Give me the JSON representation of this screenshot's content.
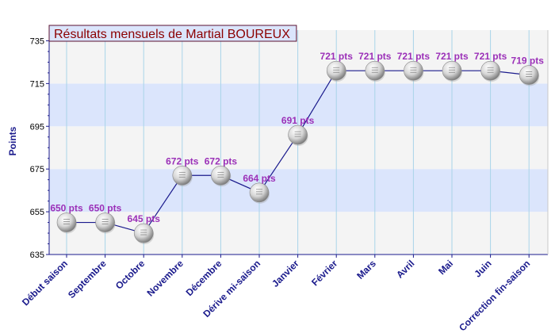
{
  "chart_data": {
    "type": "line",
    "title": "Résultats mensuels de Martial BOUREUX",
    "ylabel": "Points",
    "xlabel": "",
    "ylim": [
      635,
      740
    ],
    "yticks": [
      635,
      655,
      675,
      695,
      715,
      735
    ],
    "categories": [
      "Début saison",
      "Septembre",
      "Octobre",
      "Novembre",
      "Décembre",
      "Dérive mi-saison",
      "Janvier",
      "Février",
      "Mars",
      "Avril",
      "Mai",
      "Juin",
      "Correction fin-saison"
    ],
    "values": [
      650,
      650,
      645,
      672,
      672,
      664,
      691,
      721,
      721,
      721,
      721,
      721,
      719
    ],
    "data_labels": [
      "650 pts",
      "650 pts",
      "645 pts",
      "672 pts",
      "672 pts",
      "664 pts",
      "691 pts",
      "721 pts",
      "721 pts",
      "721 pts",
      "721 pts",
      "721 pts",
      "719 pts"
    ],
    "grid": true,
    "colors": {
      "line": "#1a1a8c",
      "band_light": "#f4f4f4",
      "band_blue": "#dbe5fc",
      "gridline": "#a9d4e9",
      "axis": "#1a1a8c",
      "title_text": "#8b0000",
      "title_bg": "#dbe5fc",
      "data_label": "#9b30b8",
      "tick_label": "#1a1a8c"
    }
  }
}
